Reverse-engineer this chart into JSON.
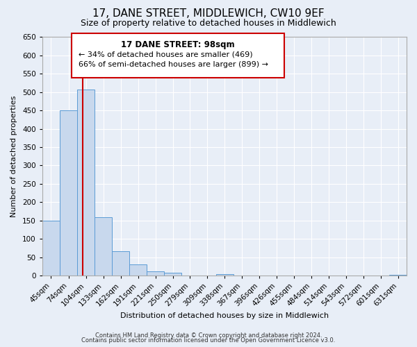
{
  "title": "17, DANE STREET, MIDDLEWICH, CW10 9EF",
  "subtitle": "Size of property relative to detached houses in Middlewich",
  "xlabel": "Distribution of detached houses by size in Middlewich",
  "ylabel": "Number of detached properties",
  "bin_labels": [
    "45sqm",
    "74sqm",
    "104sqm",
    "133sqm",
    "162sqm",
    "191sqm",
    "221sqm",
    "250sqm",
    "279sqm",
    "309sqm",
    "338sqm",
    "367sqm",
    "396sqm",
    "426sqm",
    "455sqm",
    "484sqm",
    "514sqm",
    "543sqm",
    "572sqm",
    "601sqm",
    "631sqm"
  ],
  "bin_edges": [
    30.5,
    59.5,
    89.5,
    118.5,
    147.5,
    176.5,
    205.5,
    234.5,
    263.5,
    292.5,
    321.5,
    350.5,
    379.5,
    408.5,
    437.5,
    466.5,
    495.5,
    524.5,
    553.5,
    582.5,
    611.5,
    640.5
  ],
  "bar_heights": [
    150,
    450,
    507,
    160,
    67,
    31,
    12,
    8,
    0,
    0,
    5,
    0,
    0,
    0,
    0,
    0,
    0,
    0,
    0,
    0,
    3
  ],
  "bar_color": "#c8d8ed",
  "bar_edge_color": "#5b9bd5",
  "property_line_x": 98,
  "property_line_color": "#cc0000",
  "ylim": [
    0,
    650
  ],
  "yticks": [
    0,
    50,
    100,
    150,
    200,
    250,
    300,
    350,
    400,
    450,
    500,
    550,
    600,
    650
  ],
  "annotation_title": "17 DANE STREET: 98sqm",
  "annotation_line1": "← 34% of detached houses are smaller (469)",
  "annotation_line2": "66% of semi-detached houses are larger (899) →",
  "annotation_box_color": "#cc0000",
  "footer_line1": "Contains HM Land Registry data © Crown copyright and database right 2024.",
  "footer_line2": "Contains public sector information licensed under the Open Government Licence v3.0.",
  "bg_color": "#e8eef7",
  "plot_bg_color": "#e8eef7",
  "grid_color": "#ffffff",
  "title_fontsize": 11,
  "subtitle_fontsize": 9
}
